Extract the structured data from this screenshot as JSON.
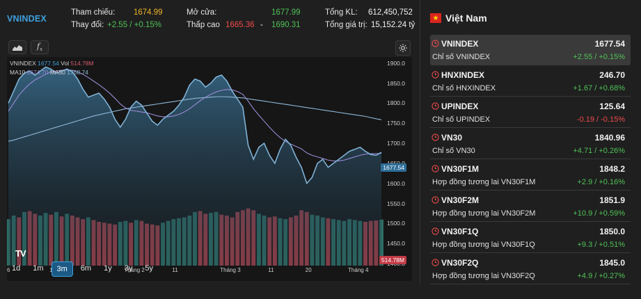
{
  "header": {
    "symbol": "VNINDEX",
    "ref_label": "Tham chiếu:",
    "ref_value": "1674.99",
    "change_label": "Thay đổi:",
    "change_value": "+2.55 / +0.15%",
    "open_label": "Mở cửa:",
    "open_value": "1677.99",
    "lowhigh_label": "Thấp cao",
    "low_value": "1665.36",
    "dash": "-",
    "high_value": "1690.31",
    "vol_label": "Tổng KL:",
    "vol_value": "612,450,752",
    "value_label": "Tổng giá trị:",
    "value_value": "15,152.24 tỷ"
  },
  "toolbar": {
    "chart_type_icon": "area-chart-icon",
    "indicator_icon": "fx-icon",
    "settings_icon": "gear-icon"
  },
  "legend": {
    "line1_symbol": "VNINDEX",
    "line1_price": "1677.54",
    "line1_vol_label": "Vol",
    "line1_vol": "514.78M",
    "line2_ma10_label": "MA10",
    "line2_ma10": "1674.70",
    "line2_ma50_label": "MA50",
    "line2_ma50": "1758.74"
  },
  "price_tag": "1677.54",
  "vol_tag": "514.78M",
  "logo_text": "TV",
  "colors": {
    "up": "#4fc257",
    "down": "#f04b4b",
    "ref": "#f0b429",
    "accent": "#3ea1e0",
    "price_line": "#7fb2d6",
    "ma10": "#9a8ad6",
    "ma50": "#8fb8d8",
    "vol_up": "#2f6f66",
    "vol_down": "#a0404a"
  },
  "chart_data": {
    "type": "line",
    "title": "",
    "x_ticks": [
      "6",
      "14",
      "Tháng 2",
      "11",
      "Tháng 3",
      "11",
      "20",
      "Tháng 4"
    ],
    "y_ticks": [
      1900,
      1850,
      1800,
      1750,
      1700,
      1650,
      1600,
      1550,
      1500,
      1450,
      1400
    ],
    "ylim": [
      1395,
      1915
    ],
    "series": [
      {
        "name": "VNINDEX",
        "values": [
          1800,
          1830,
          1860,
          1875,
          1880,
          1870,
          1880,
          1890,
          1885,
          1875,
          1880,
          1885,
          1878,
          1860,
          1835,
          1815,
          1820,
          1825,
          1810,
          1790,
          1760,
          1740,
          1760,
          1790,
          1805,
          1795,
          1775,
          1755,
          1745,
          1760,
          1770,
          1780,
          1795,
          1815,
          1845,
          1860,
          1855,
          1840,
          1850,
          1865,
          1870,
          1855,
          1830,
          1810,
          1790,
          1695,
          1660,
          1690,
          1700,
          1670,
          1650,
          1685,
          1710,
          1695,
          1665,
          1640,
          1600,
          1615,
          1650,
          1660,
          1640,
          1650,
          1660,
          1670,
          1680,
          1685,
          1690,
          1680,
          1672,
          1670,
          1677.54
        ]
      },
      {
        "name": "MA10",
        "values": [
          1780,
          1800,
          1820,
          1835,
          1848,
          1858,
          1865,
          1872,
          1878,
          1880,
          1882,
          1883,
          1882,
          1878,
          1872,
          1864,
          1855,
          1846,
          1836,
          1825,
          1812,
          1798,
          1788,
          1782,
          1780,
          1778,
          1776,
          1772,
          1768,
          1766,
          1766,
          1768,
          1772,
          1778,
          1786,
          1796,
          1806,
          1815,
          1822,
          1828,
          1832,
          1834,
          1833,
          1829,
          1822,
          1805,
          1786,
          1770,
          1755,
          1740,
          1726,
          1714,
          1705,
          1698,
          1692,
          1686,
          1676,
          1670,
          1666,
          1662,
          1658,
          1656,
          1656,
          1658,
          1662,
          1666,
          1670,
          1673,
          1674,
          1674.5,
          1674.7
        ]
      },
      {
        "name": "MA50",
        "values": [
          1705,
          1708,
          1712,
          1716,
          1720,
          1724,
          1728,
          1732,
          1736,
          1740,
          1744,
          1748,
          1752,
          1756,
          1760,
          1764,
          1768,
          1771,
          1774,
          1777,
          1780,
          1783,
          1786,
          1788,
          1790,
          1792,
          1794,
          1796,
          1798,
          1800,
          1802,
          1804,
          1806,
          1808,
          1810,
          1812,
          1813,
          1814,
          1815,
          1816,
          1816,
          1816,
          1815,
          1814,
          1813,
          1811,
          1809,
          1807,
          1805,
          1803,
          1801,
          1799,
          1797,
          1795,
          1793,
          1791,
          1789,
          1787,
          1785,
          1783,
          1781,
          1779,
          1777,
          1775,
          1773,
          1771,
          1769,
          1767,
          1764,
          1761,
          1758.74
        ]
      }
    ],
    "volume_values": [
      520,
      560,
      540,
      600,
      610,
      580,
      560,
      590,
      570,
      600,
      550,
      580,
      560,
      540,
      520,
      540,
      510,
      490,
      480,
      470,
      460,
      490,
      500,
      480,
      510,
      500,
      470,
      460,
      450,
      480,
      500,
      520,
      530,
      540,
      560,
      600,
      610,
      580,
      590,
      600,
      570,
      560,
      540,
      600,
      620,
      640,
      620,
      580,
      560,
      540,
      550,
      530,
      520,
      540,
      560,
      620,
      600,
      570,
      560,
      540,
      530,
      520,
      510,
      500,
      520,
      510,
      500,
      490,
      500,
      505,
      514.78
    ],
    "volume_up": [
      1,
      1,
      0,
      1,
      0,
      0,
      1,
      1,
      0,
      1,
      0,
      1,
      0,
      0,
      0,
      1,
      0,
      0,
      0,
      0,
      0,
      1,
      1,
      0,
      1,
      0,
      0,
      0,
      0,
      1,
      1,
      1,
      1,
      1,
      1,
      1,
      0,
      0,
      1,
      1,
      0,
      0,
      0,
      0,
      0,
      0,
      0,
      1,
      1,
      0,
      0,
      1,
      1,
      0,
      0,
      0,
      0,
      1,
      1,
      1,
      0,
      1,
      1,
      1,
      1,
      1,
      1,
      0,
      0,
      0,
      1
    ]
  },
  "ranges": [
    {
      "label": "1d",
      "active": false
    },
    {
      "label": "1m",
      "active": false
    },
    {
      "label": "3m",
      "active": true
    },
    {
      "label": "6m",
      "active": false
    },
    {
      "label": "1y",
      "active": false
    },
    {
      "label": "3y",
      "active": false
    },
    {
      "label": "5y",
      "active": false
    }
  ],
  "region": {
    "title": "Việt Nam",
    "flag_icon": "vietnam-flag-icon"
  },
  "indices": [
    {
      "name": "VNINDEX",
      "price": "1677.54",
      "desc": "Chỉ số VNINDEX",
      "change": "+2.55 / +0.15%",
      "dir": "up",
      "selected": true
    },
    {
      "name": "HNXINDEX",
      "price": "246.70",
      "desc": "Chỉ số HNXINDEX",
      "change": "+1.67 / +0.68%",
      "dir": "up",
      "selected": false
    },
    {
      "name": "UPINDEX",
      "price": "125.64",
      "desc": "Chỉ số UPINDEX",
      "change": "-0.19 / -0.15%",
      "dir": "down",
      "selected": false
    },
    {
      "name": "VN30",
      "price": "1840.96",
      "desc": "Chỉ số VN30",
      "change": "+4.71 / +0.26%",
      "dir": "up",
      "selected": false
    },
    {
      "name": "VN30F1M",
      "price": "1848.2",
      "desc": "Hợp đồng tương lai VN30F1M",
      "change": "+2.9 / +0.16%",
      "dir": "up",
      "selected": false
    },
    {
      "name": "VN30F2M",
      "price": "1851.9",
      "desc": "Hợp đồng tương lai VN30F2M",
      "change": "+10.9 / +0.59%",
      "dir": "up",
      "selected": false
    },
    {
      "name": "VN30F1Q",
      "price": "1850.0",
      "desc": "Hợp đồng tương lai VN30F1Q",
      "change": "+9.3 / +0.51%",
      "dir": "up",
      "selected": false
    },
    {
      "name": "VN30F2Q",
      "price": "1845.0",
      "desc": "Hợp đồng tương lai VN30F2Q",
      "change": "+4.9 / +0.27%",
      "dir": "up",
      "selected": false
    }
  ]
}
